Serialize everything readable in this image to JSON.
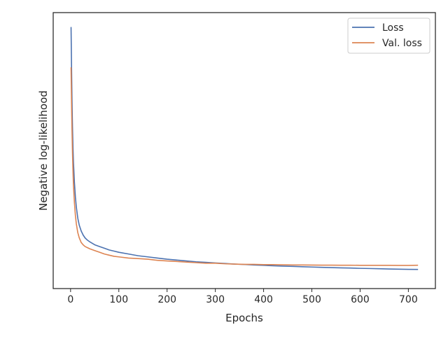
{
  "chart_data": {
    "type": "line",
    "title": "",
    "xlabel": "Epochs",
    "ylabel": "Negative log-likelihood",
    "xlim": [
      -36,
      756
    ],
    "ylim": [
      -0.24,
      4.55
    ],
    "y_ticks_labeled": false,
    "grid": false,
    "legend": {
      "placement": "top-right"
    },
    "x_ticks": [
      0,
      100,
      200,
      300,
      400,
      500,
      600,
      700
    ],
    "series": [
      {
        "name": "Loss",
        "color": "#4c72b0",
        "x": [
          1,
          2,
          3,
          4,
          5,
          6,
          8,
          10,
          12,
          15,
          18,
          22,
          26,
          30,
          35,
          40,
          50,
          60,
          70,
          80,
          90,
          100,
          120,
          140,
          160,
          180,
          200,
          220,
          240,
          260,
          280,
          300,
          320,
          340,
          360,
          380,
          400,
          420,
          440,
          460,
          480,
          500,
          520,
          540,
          560,
          580,
          600,
          620,
          640,
          660,
          680,
          700,
          720
        ],
        "y": [
          4.3,
          3.6,
          3.0,
          2.55,
          2.2,
          1.95,
          1.6,
          1.35,
          1.17,
          0.98,
          0.86,
          0.76,
          0.69,
          0.64,
          0.6,
          0.57,
          0.52,
          0.49,
          0.46,
          0.43,
          0.41,
          0.39,
          0.36,
          0.33,
          0.31,
          0.29,
          0.27,
          0.255,
          0.24,
          0.225,
          0.215,
          0.205,
          0.195,
          0.185,
          0.178,
          0.17,
          0.163,
          0.156,
          0.15,
          0.145,
          0.139,
          0.134,
          0.129,
          0.124,
          0.12,
          0.116,
          0.111,
          0.108,
          0.104,
          0.1,
          0.097,
          0.094,
          0.092
        ]
      },
      {
        "name": "Val. loss",
        "color": "#dd8452",
        "x": [
          1,
          2,
          3,
          4,
          5,
          6,
          8,
          10,
          12,
          15,
          18,
          22,
          26,
          30,
          35,
          40,
          50,
          60,
          70,
          80,
          90,
          100,
          120,
          140,
          160,
          180,
          200,
          220,
          240,
          260,
          280,
          300,
          320,
          340,
          360,
          380,
          400,
          420,
          440,
          460,
          480,
          500,
          520,
          540,
          560,
          580,
          600,
          620,
          640,
          660,
          680,
          700,
          720
        ],
        "y": [
          3.6,
          3.0,
          2.5,
          2.1,
          1.8,
          1.55,
          1.25,
          1.03,
          0.88,
          0.73,
          0.64,
          0.56,
          0.52,
          0.49,
          0.47,
          0.45,
          0.42,
          0.39,
          0.36,
          0.34,
          0.32,
          0.31,
          0.29,
          0.28,
          0.27,
          0.25,
          0.24,
          0.23,
          0.22,
          0.21,
          0.2,
          0.2,
          0.19,
          0.185,
          0.18,
          0.18,
          0.175,
          0.175,
          0.172,
          0.17,
          0.17,
          0.168,
          0.167,
          0.166,
          0.165,
          0.165,
          0.164,
          0.164,
          0.163,
          0.163,
          0.162,
          0.162,
          0.165
        ]
      }
    ]
  }
}
